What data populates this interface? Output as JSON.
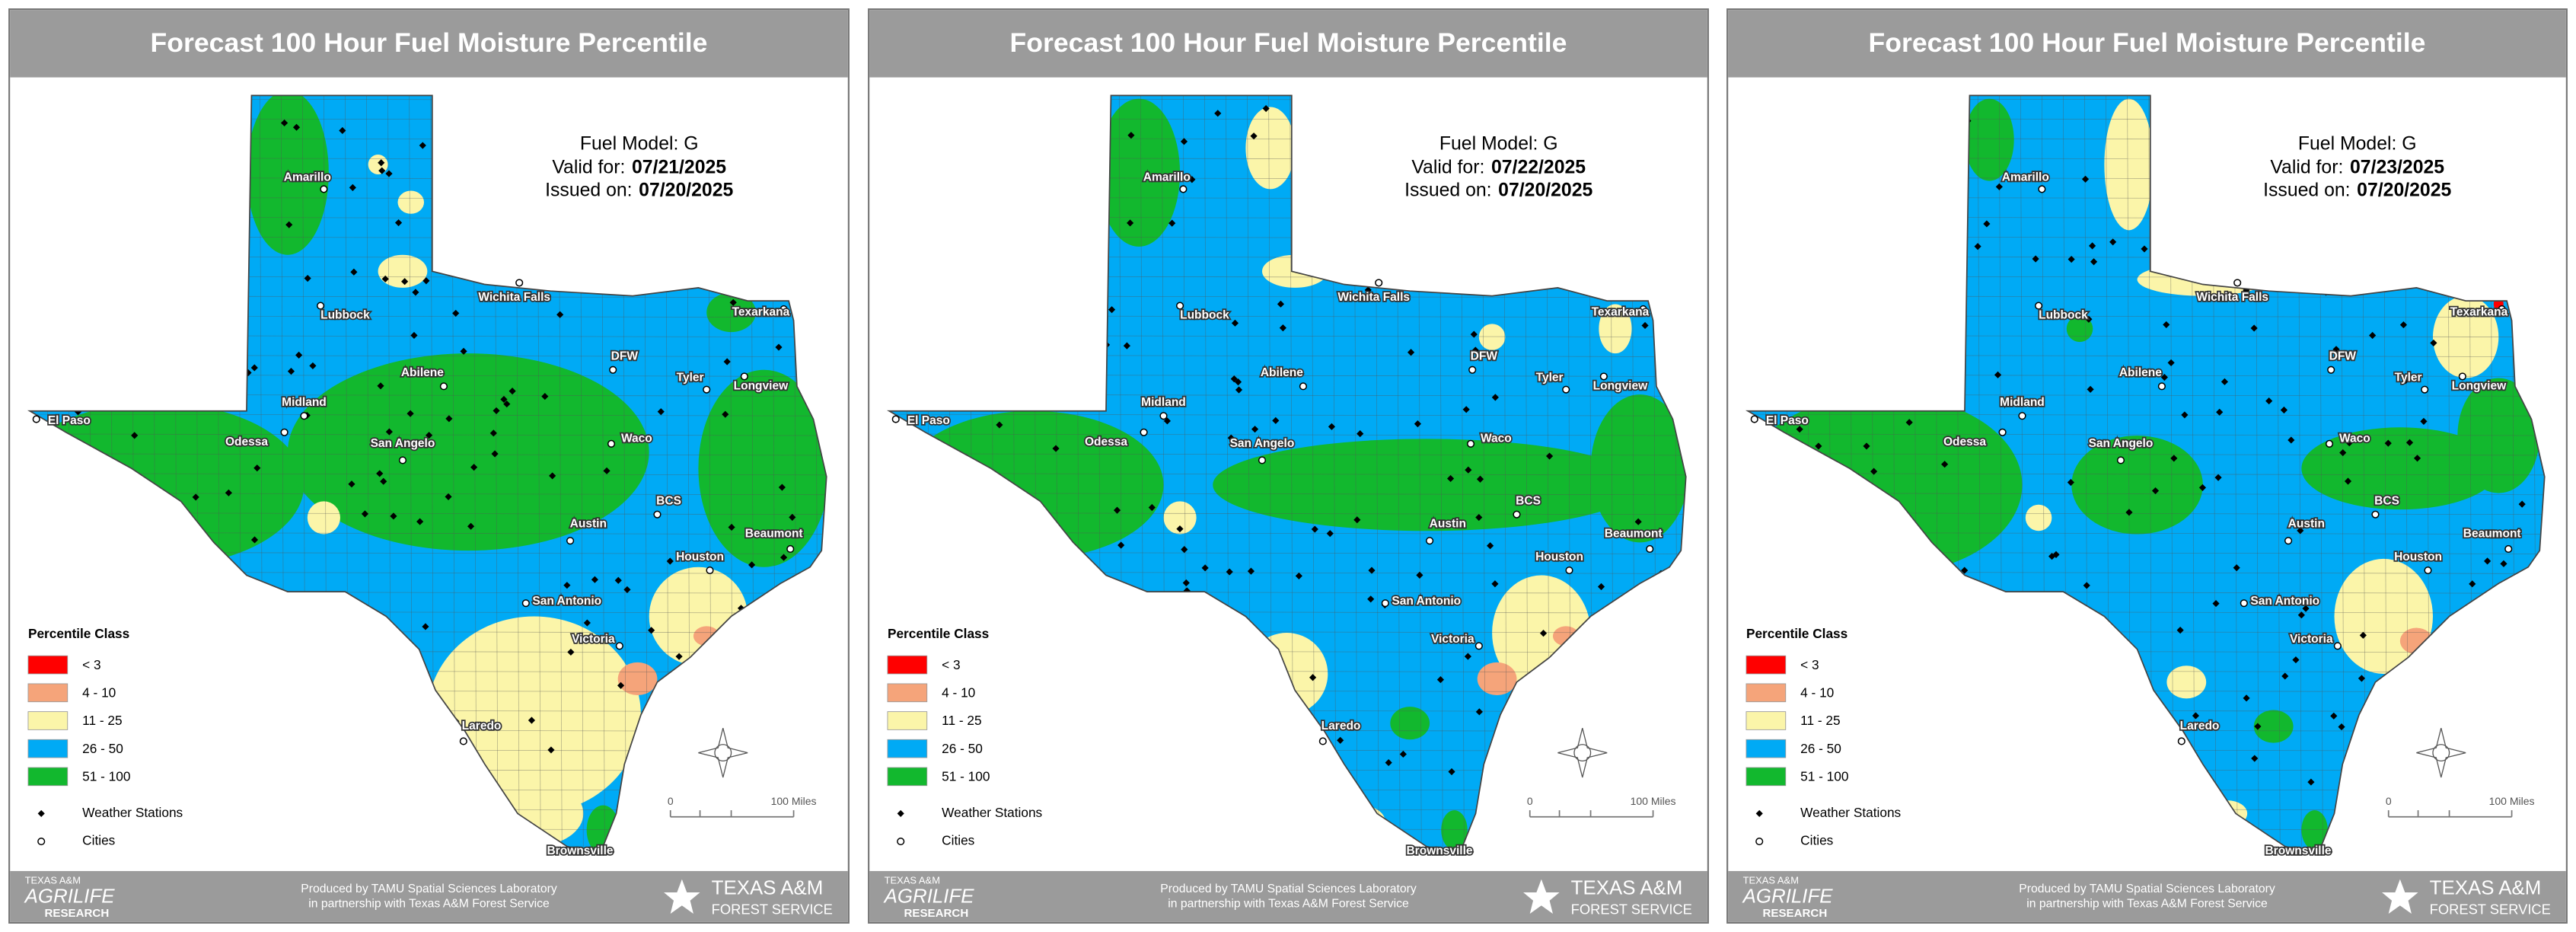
{
  "panels": [
    {
      "title": "Forecast 100 Hour Fuel Moisture Percentile",
      "info": {
        "fuel_model": "Fuel Model: G",
        "valid_label": "Valid for:",
        "valid_date": "07/21/2025",
        "issued_label": "Issued on:",
        "issued_date": "07/20/2025"
      },
      "cities": [
        "El Paso",
        "Midland",
        "Odessa",
        "Amarillo",
        "Lubbock",
        "Wichita Falls",
        "Abilene",
        "San Angelo",
        "DFW",
        "Tyler",
        "Longview",
        "Texarkana",
        "Waco",
        "Austin",
        "BCS",
        "Houston",
        "Beaumont",
        "San Antonio",
        "Victoria",
        "Laredo",
        "Brownsville"
      ],
      "legend": {
        "title": "Percentile Class",
        "classes": [
          {
            "label": "< 3",
            "color": "#ff0000"
          },
          {
            "label": "4 - 10",
            "color": "#f5a47a"
          },
          {
            "label": "11 - 25",
            "color": "#fbf5a9"
          },
          {
            "label": "26 - 50",
            "color": "#00aaf5"
          },
          {
            "label": "51 - 100",
            "color": "#12b82e"
          }
        ],
        "stations": "Weather Stations",
        "cities": "Cities"
      },
      "scale": {
        "start": "0",
        "end": "100 Miles"
      },
      "footer": {
        "line1": "Produced by TAMU Spatial Sciences Laboratory",
        "line2": "in partnership with Texas A&M Forest Service",
        "agrilife": [
          "TEXAS A&M",
          "AGRILIFE",
          "RESEARCH"
        ],
        "forest": [
          "TEXAS A&M",
          "FOREST SERVICE"
        ]
      }
    },
    {
      "title": "Forecast 100 Hour Fuel Moisture Percentile",
      "info": {
        "fuel_model": "Fuel Model: G",
        "valid_label": "Valid for:",
        "valid_date": "07/22/2025",
        "issued_label": "Issued on:",
        "issued_date": "07/20/2025"
      },
      "cities": [
        "El Paso",
        "Midland",
        "Odessa",
        "Amarillo",
        "Lubbock",
        "Wichita Falls",
        "Abilene",
        "San Angelo",
        "DFW",
        "Tyler",
        "Longview",
        "Texarkana",
        "Waco",
        "Austin",
        "BCS",
        "Houston",
        "Beaumont",
        "San Antonio",
        "Victoria",
        "Laredo",
        "Brownsville"
      ],
      "legend": {
        "title": "Percentile Class",
        "classes": [
          {
            "label": "< 3",
            "color": "#ff0000"
          },
          {
            "label": "4 - 10",
            "color": "#f5a47a"
          },
          {
            "label": "11 - 25",
            "color": "#fbf5a9"
          },
          {
            "label": "26 - 50",
            "color": "#00aaf5"
          },
          {
            "label": "51 - 100",
            "color": "#12b82e"
          }
        ],
        "stations": "Weather Stations",
        "cities": "Cities"
      },
      "scale": {
        "start": "0",
        "end": "100 Miles"
      },
      "footer": {
        "line1": "Produced by TAMU Spatial Sciences Laboratory",
        "line2": "in partnership with Texas A&M Forest Service",
        "agrilife": [
          "TEXAS A&M",
          "AGRILIFE",
          "RESEARCH"
        ],
        "forest": [
          "TEXAS A&M",
          "FOREST SERVICE"
        ]
      }
    },
    {
      "title": "Forecast 100 Hour Fuel Moisture Percentile",
      "info": {
        "fuel_model": "Fuel Model: G",
        "valid_label": "Valid for:",
        "valid_date": "07/23/2025",
        "issued_label": "Issued on:",
        "issued_date": "07/20/2025"
      },
      "cities": [
        "El Paso",
        "Midland",
        "Odessa",
        "Amarillo",
        "Lubbock",
        "Wichita Falls",
        "Abilene",
        "San Angelo",
        "DFW",
        "Tyler",
        "Longview",
        "Texarkana",
        "Waco",
        "Austin",
        "BCS",
        "Houston",
        "Beaumont",
        "San Antonio",
        "Victoria",
        "Laredo",
        "Brownsville"
      ],
      "legend": {
        "title": "Percentile Class",
        "classes": [
          {
            "label": "< 3",
            "color": "#ff0000"
          },
          {
            "label": "4 - 10",
            "color": "#f5a47a"
          },
          {
            "label": "11 - 25",
            "color": "#fbf5a9"
          },
          {
            "label": "26 - 50",
            "color": "#00aaf5"
          },
          {
            "label": "51 - 100",
            "color": "#12b82e"
          }
        ],
        "stations": "Weather Stations",
        "cities": "Cities"
      },
      "scale": {
        "start": "0",
        "end": "100 Miles"
      },
      "footer": {
        "line1": "Produced by TAMU Spatial Sciences Laboratory",
        "line2": "in partnership with Texas A&M Forest Service",
        "agrilife": [
          "TEXAS A&M",
          "AGRILIFE",
          "RESEARCH"
        ],
        "forest": [
          "TEXAS A&M",
          "FOREST SERVICE"
        ]
      }
    }
  ]
}
